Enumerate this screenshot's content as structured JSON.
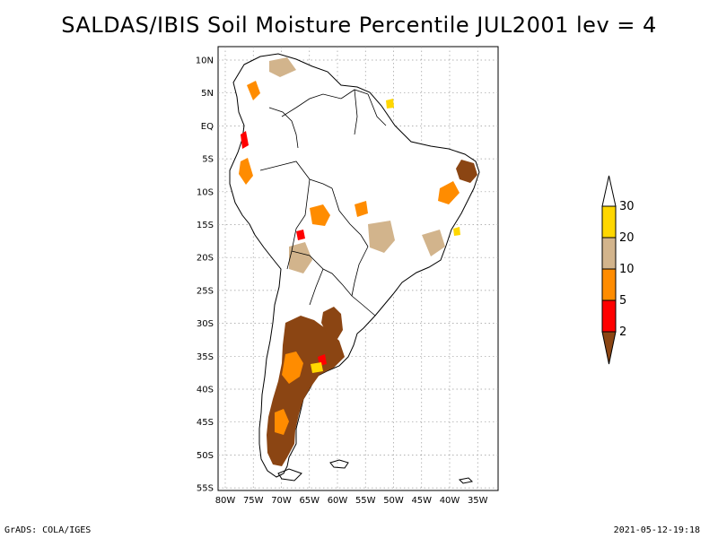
{
  "title": "SALDAS/IBIS Soil Moisture Percentile JUL2001 lev = 4",
  "lat_ticks": [
    "10N",
    "5N",
    "EQ",
    "5S",
    "10S",
    "15S",
    "20S",
    "25S",
    "30S",
    "35S",
    "40S",
    "45S",
    "50S",
    "55S"
  ],
  "lon_ticks": [
    "80W",
    "75W",
    "70W",
    "65W",
    "60W",
    "55W",
    "50W",
    "45W",
    "40W",
    "35W"
  ],
  "legend": {
    "levels": [
      "2",
      "5",
      "10",
      "20",
      "30"
    ],
    "colors": {
      "below_2": "#8b4513",
      "2_5": "#ff0000",
      "5_10": "#ff8c00",
      "10_20": "#d2b48c",
      "20_30": "#ffd700",
      "above_30": "#ffffff"
    }
  },
  "footer": {
    "left": "GrADS: COLA/IGES",
    "right": "2021-05-12-19:18"
  }
}
